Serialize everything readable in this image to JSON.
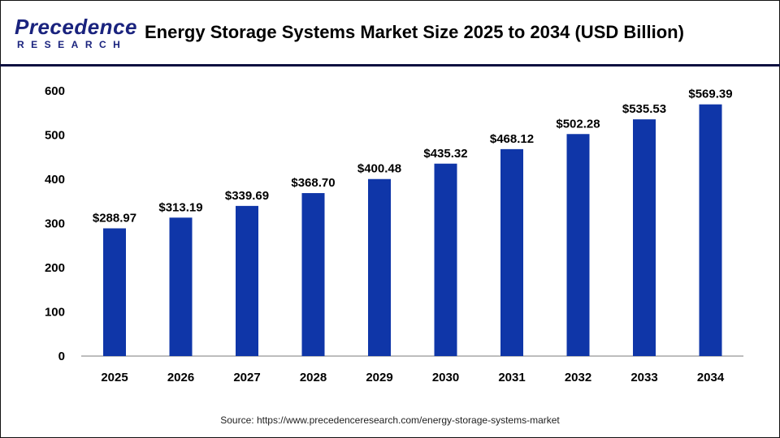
{
  "header": {
    "logo_top": "Precedence",
    "logo_bottom": "RESEARCH",
    "title": "Energy Storage Systems Market Size 2025 to 2034 (USD Billion)"
  },
  "source": "Source: https://www.precedenceresearch.com/energy-storage-systems-market",
  "colors": {
    "bar": "#0f36a8",
    "divider": "#0d1040",
    "axis": "#bdbdbd"
  },
  "chart_data": {
    "type": "bar",
    "categories": [
      "2025",
      "2026",
      "2027",
      "2028",
      "2029",
      "2030",
      "2031",
      "2032",
      "2033",
      "2034"
    ],
    "values": [
      288.97,
      313.19,
      339.69,
      368.7,
      400.48,
      435.32,
      468.12,
      502.28,
      535.53,
      569.39
    ],
    "data_labels": [
      "$288.97",
      "$313.19",
      "$339.69",
      "$368.70",
      "$400.48",
      "$435.32",
      "$468.12",
      "$502.28",
      "$535.53",
      "$569.39"
    ],
    "yticks": [
      "0",
      "100",
      "200",
      "300",
      "400",
      "500",
      "600"
    ],
    "ylim": [
      0,
      600
    ],
    "grid": false,
    "legend": "none"
  }
}
